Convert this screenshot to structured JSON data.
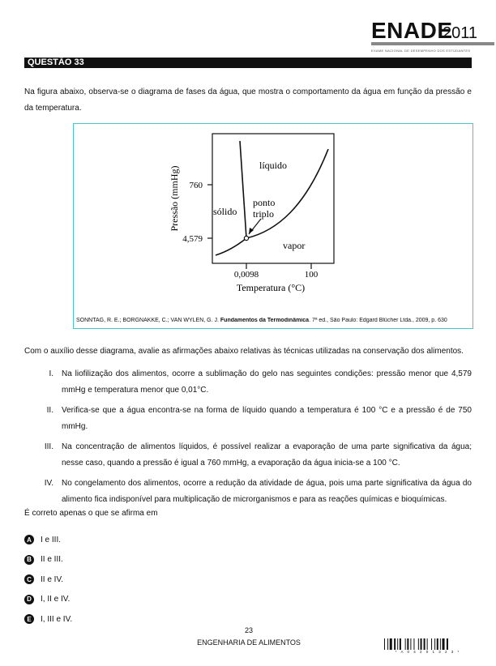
{
  "header": {
    "logo": "ENADE",
    "year": "2011",
    "subtitle": "EXAME NACIONAL DE DESEMPENHO DOS ESTUDANTES"
  },
  "question": {
    "label": "QUESTÃO 33",
    "intro": "Na figura abaixo, observa-se o diagrama de fases da água, que mostra o comportamento da água em função da pressão e da temperatura.",
    "source_prefix": "SONNTAG, R. E.; BORGNAKKE, C.; VAN WYLEN, G. J. ",
    "source_title": "Fundamentos da Termodinâmica",
    "source_suffix": ". 7ª ed., São Paulo: Edgard Blücher Ltda., 2009, p. 630",
    "stem": "Com o auxílio desse diagrama, avalie as afirmações abaixo relativas às técnicas utilizadas na conservação dos alimentos.",
    "items": [
      {
        "num": "I.",
        "text": "Na liofilização dos alimentos, ocorre a sublimação do gelo nas seguintes condições: pressão menor que 4,579 mmHg e temperatura menor que 0,01°C."
      },
      {
        "num": "II.",
        "text": "Verifica-se que a água encontra-se na forma de líquido quando a temperatura é 100 °C e a pressão é de 750 mmHg."
      },
      {
        "num": "III.",
        "text": "Na concentração de alimentos líquidos, é possível realizar a evaporação de uma parte significativa da água; nesse caso, quando a pressão é igual a 760 mmHg, a evaporação da água inicia-se a 100 °C."
      },
      {
        "num": "IV.",
        "text": "No congelamento dos alimentos, ocorre a redução da atividade de água, pois uma parte significativa da água do alimento fica indisponível para multiplicação de microrganismos e para as reações químicas e bioquímicas."
      }
    ],
    "prompt": "É correto apenas o que se afirma em",
    "options": [
      {
        "letter": "A",
        "text": "I e III."
      },
      {
        "letter": "B",
        "text": "II e III."
      },
      {
        "letter": "C",
        "text": "II e IV."
      },
      {
        "letter": "D",
        "text": "I, II e IV."
      },
      {
        "letter": "E",
        "text": "I, III e IV."
      }
    ]
  },
  "diagram": {
    "ylabel": "Pressão (mmHg)",
    "xlabel": "Temperatura (°C)",
    "y_ticks": [
      "760",
      "4,579"
    ],
    "x_ticks": [
      "0,0098",
      "100"
    ],
    "region_labels": {
      "liquid": "líquido",
      "solid": "sólido",
      "vapor": "vapor",
      "triple_1": "ponto",
      "triple_2": "triplo"
    }
  },
  "footer": {
    "page": "23",
    "course": "ENGENHARIA DE ALIMENTOS",
    "barcode_number": "* A 0 4 2 0 1 3 2 3 *"
  }
}
